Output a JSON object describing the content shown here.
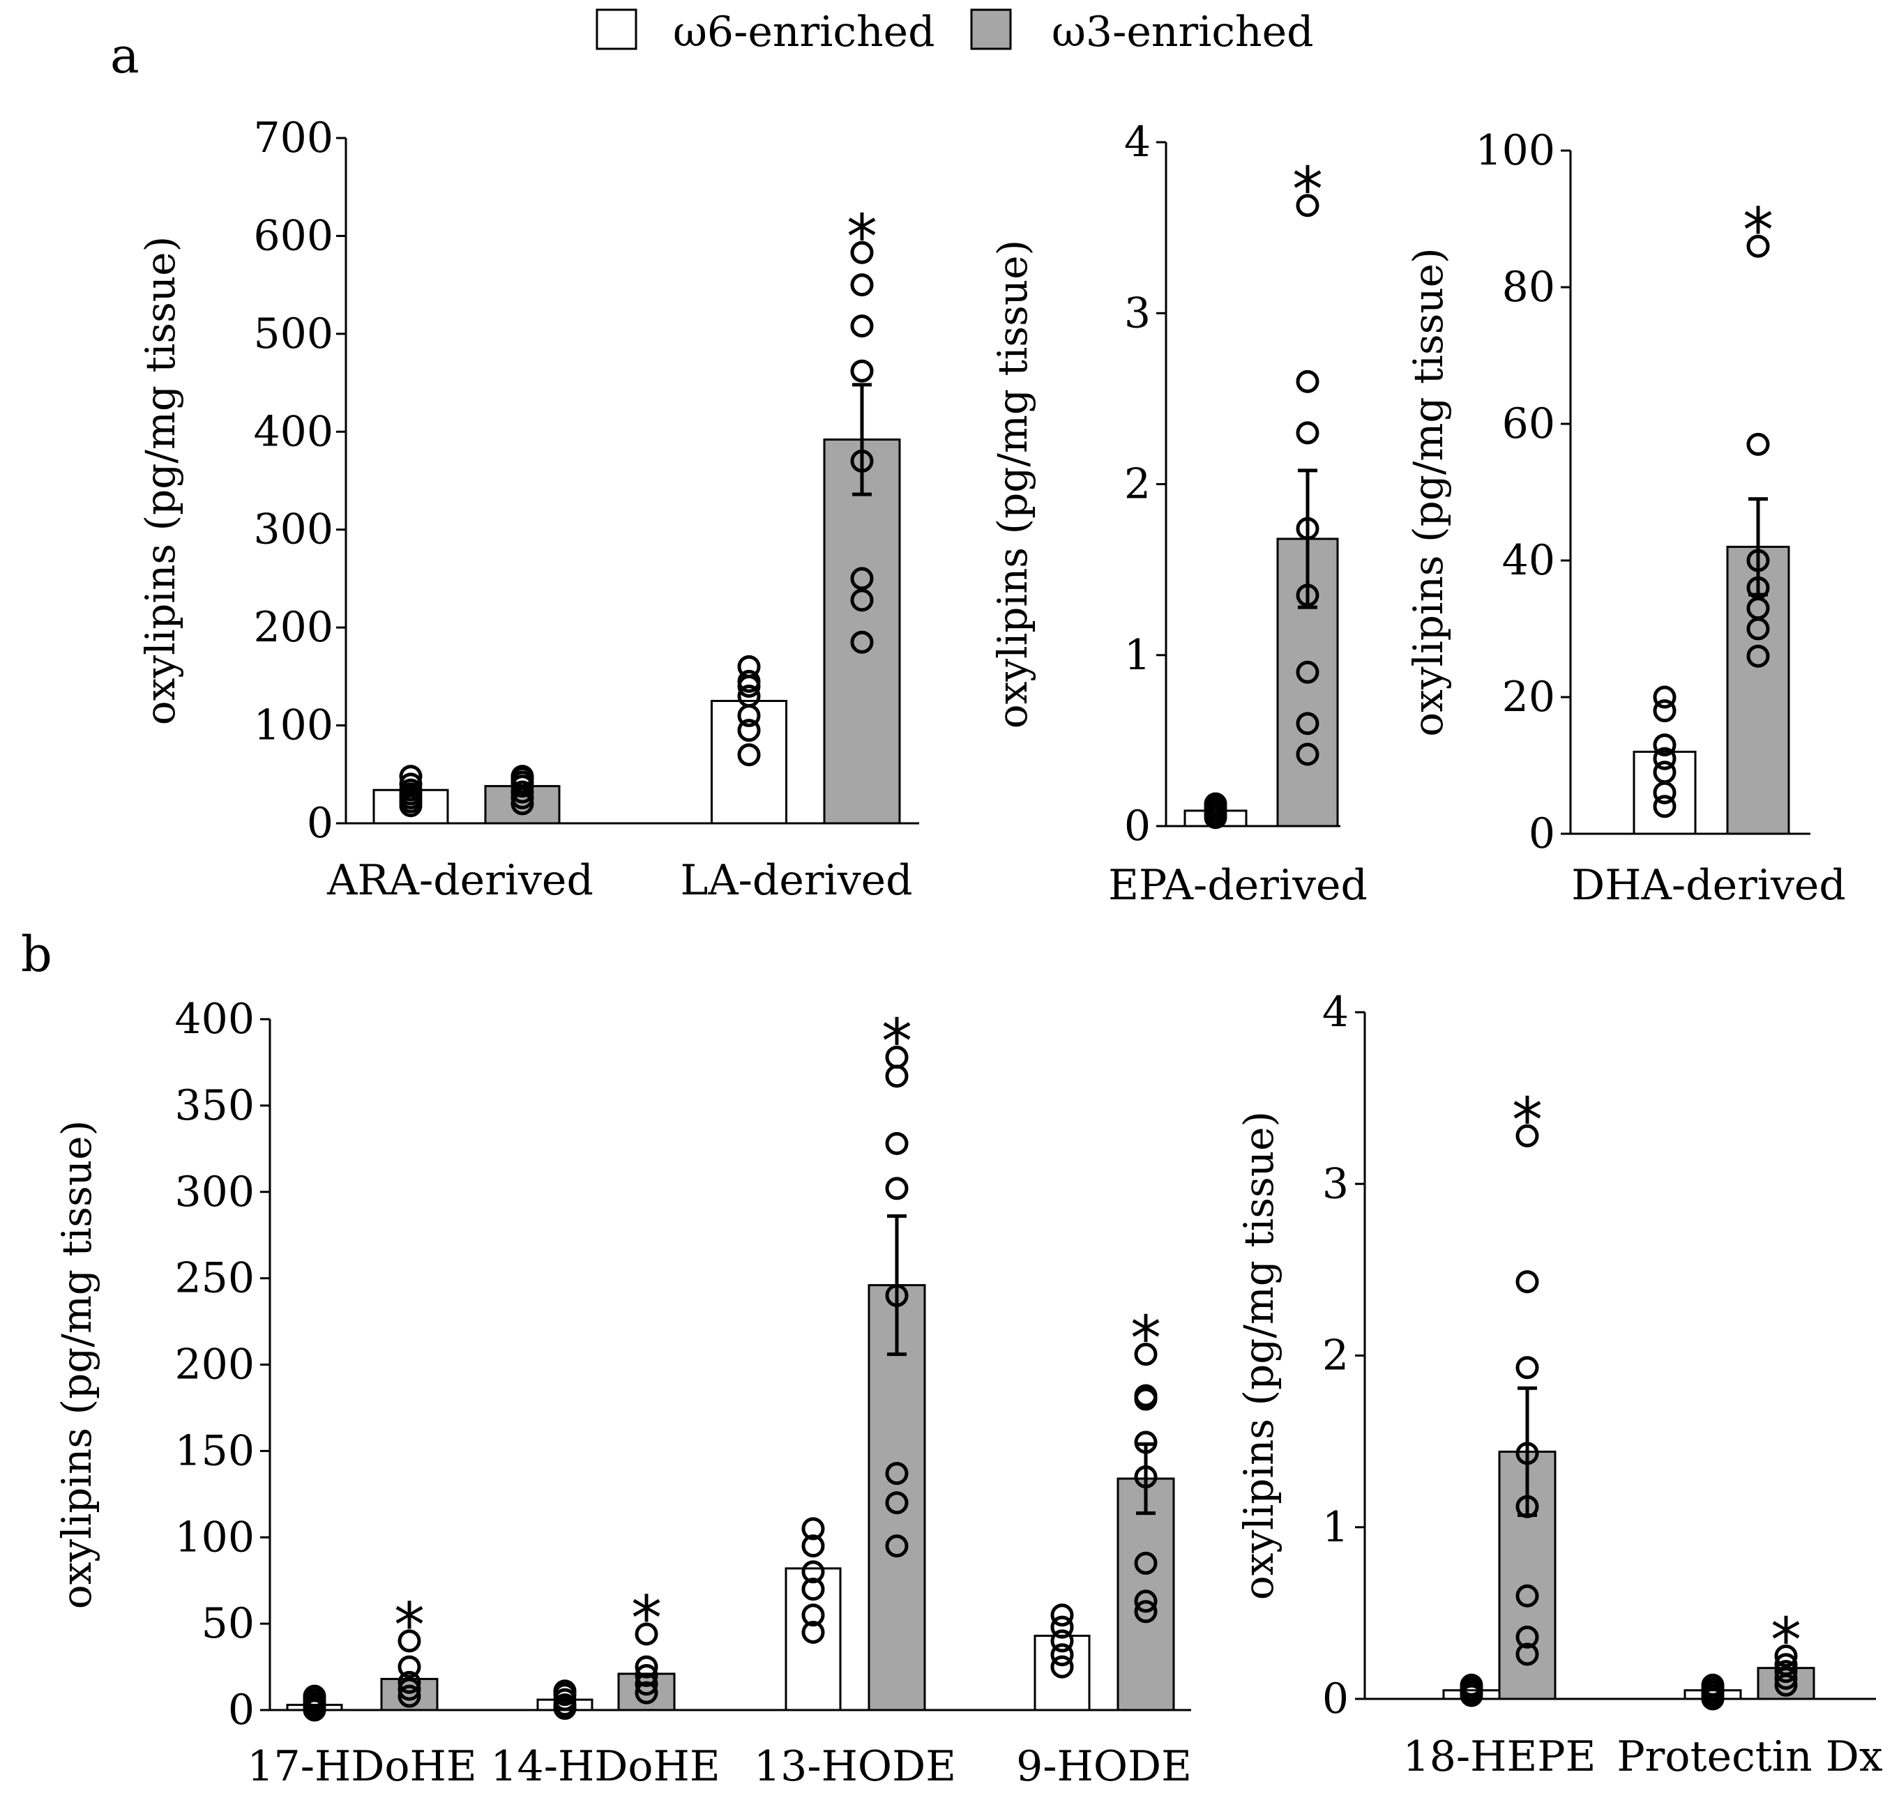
{
  "legend": {
    "items": [
      {
        "label": "ω6-enriched",
        "color": "#ffffff"
      },
      {
        "label": "ω3-enriched",
        "color": "#a6a6a6"
      }
    ]
  },
  "panel_labels": {
    "a": "a",
    "b": "b"
  },
  "colors": {
    "w6": "#ffffff",
    "w3": "#a6a6a6",
    "stroke": "#000000"
  },
  "significance_marker": "*",
  "chart_data": [
    {
      "id": "a1",
      "panel": "a",
      "type": "bar",
      "ylabel": "oxylipins (pg/mg tissue)",
      "ylim": [
        0,
        700
      ],
      "yticks": [
        0,
        100,
        200,
        300,
        400,
        500,
        600,
        700
      ],
      "categories": [
        "ARA-derived",
        "LA-derived"
      ],
      "series": [
        {
          "name": "ω6-enriched",
          "values": [
            34,
            125
          ],
          "sem": [
            0,
            0
          ],
          "points": [
            [
              18,
              22,
              26,
              30,
              34,
              40,
              48
            ],
            [
              70,
              95,
              110,
              130,
              140,
              145,
              160
            ]
          ]
        },
        {
          "name": "ω3-enriched",
          "values": [
            38,
            392
          ],
          "sem": [
            0,
            56
          ],
          "points": [
            [
              20,
              26,
              32,
              38,
              42,
              46,
              48
            ],
            [
              185,
              228,
              250,
              370,
              462,
              508,
              550,
              583
            ]
          ]
        }
      ],
      "significant": [
        [
          false,
          false
        ],
        [
          false,
          true
        ]
      ]
    },
    {
      "id": "a2",
      "panel": "a",
      "type": "bar",
      "ylabel": "oxylipins (pg/mg tissue)",
      "ylim": [
        0,
        4
      ],
      "yticks": [
        0,
        1,
        2,
        3,
        4
      ],
      "categories": [
        "EPA-derived"
      ],
      "series": [
        {
          "name": "ω6-enriched",
          "values": [
            0.09
          ],
          "sem": [
            0
          ],
          "points": [
            [
              0.05,
              0.07,
              0.09,
              0.11,
              0.13
            ]
          ]
        },
        {
          "name": "ω3-enriched",
          "values": [
            1.68
          ],
          "sem": [
            0.4
          ],
          "points": [
            [
              0.42,
              0.6,
              0.9,
              1.35,
              1.74,
              2.3,
              2.6,
              3.63
            ]
          ]
        }
      ],
      "significant": [
        [
          false,
          true
        ]
      ]
    },
    {
      "id": "a3",
      "panel": "a",
      "type": "bar",
      "ylabel": "oxylipins (pg/mg tissue)",
      "ylim": [
        0,
        100
      ],
      "yticks": [
        0,
        20,
        40,
        60,
        80,
        100
      ],
      "categories": [
        "DHA-derived"
      ],
      "series": [
        {
          "name": "ω6-enriched",
          "values": [
            12
          ],
          "sem": [
            0
          ],
          "points": [
            [
              4,
              6,
              9,
              11,
              13,
              18,
              20
            ]
          ]
        },
        {
          "name": "ω3-enriched",
          "values": [
            42
          ],
          "sem": [
            7
          ],
          "points": [
            [
              26,
              30,
              33,
              36,
              40,
              57,
              86
            ]
          ]
        }
      ],
      "significant": [
        [
          false,
          true
        ]
      ]
    },
    {
      "id": "b1",
      "panel": "b",
      "type": "bar",
      "ylabel": "oxylipins (pg/mg tissue)",
      "ylim": [
        0,
        400
      ],
      "yticks": [
        0,
        50,
        100,
        150,
        200,
        250,
        300,
        350,
        400
      ],
      "categories": [
        "17-HDoHE",
        "14-HDoHE",
        "13-HODE",
        "9-HODE"
      ],
      "series": [
        {
          "name": "ω6-enriched",
          "values": [
            3,
            6,
            82,
            43
          ],
          "sem": [
            0,
            0,
            0,
            0
          ],
          "points": [
            [
              0,
              2,
              4,
              6,
              8
            ],
            [
              1,
              3,
              6,
              9,
              11
            ],
            [
              45,
              55,
              70,
              80,
              95,
              105
            ],
            [
              25,
              32,
              40,
              48,
              55
            ]
          ]
        },
        {
          "name": "ω3-enriched",
          "values": [
            18,
            21,
            246,
            134
          ],
          "sem": [
            0,
            0,
            40,
            20
          ],
          "points": [
            [
              8,
              12,
              16,
              25,
              40
            ],
            [
              10,
              15,
              20,
              25,
              44
            ],
            [
              95,
              120,
              137,
              240,
              302,
              328,
              367,
              378
            ],
            [
              57,
              63,
              85,
              135,
              155,
              180,
              182,
              206
            ]
          ]
        }
      ],
      "significant": [
        [
          false,
          true
        ],
        [
          false,
          true
        ],
        [
          false,
          true
        ],
        [
          false,
          true
        ]
      ]
    },
    {
      "id": "b2",
      "panel": "b",
      "type": "bar",
      "ylabel": "oxylipins (pg/mg tissue)",
      "ylim": [
        0,
        4
      ],
      "yticks": [
        0,
        1,
        2,
        3,
        4
      ],
      "categories": [
        "18-HEPE",
        "Protectin Dx"
      ],
      "series": [
        {
          "name": "ω6-enriched",
          "values": [
            0.05,
            0.05
          ],
          "sem": [
            0,
            0
          ],
          "points": [
            [
              0.02,
              0.04,
              0.06,
              0.08
            ],
            [
              0.0,
              0.02,
              0.04,
              0.06,
              0.08
            ]
          ]
        },
        {
          "name": "ω3-enriched",
          "values": [
            1.44,
            0.18
          ],
          "sem": [
            0.37,
            0
          ],
          "points": [
            [
              0.26,
              0.36,
              0.6,
              1.12,
              1.43,
              1.93,
              2.43,
              3.28
            ],
            [
              0.08,
              0.12,
              0.16,
              0.2,
              0.25
            ]
          ]
        }
      ],
      "significant": [
        [
          false,
          true
        ],
        [
          false,
          true
        ]
      ]
    }
  ]
}
